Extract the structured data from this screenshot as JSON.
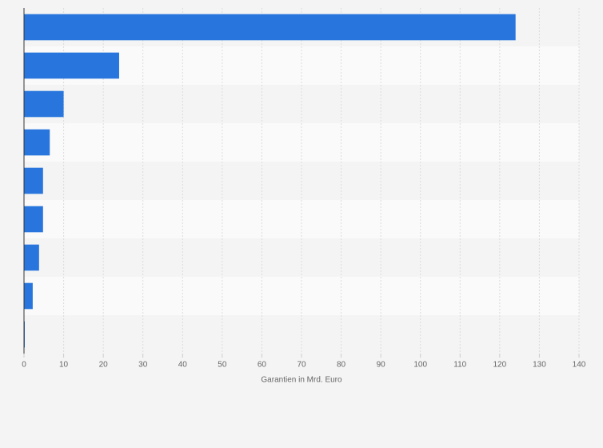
{
  "chart_data": {
    "type": "bar",
    "orientation": "horizontal",
    "x_label": "Garantien in Mrd. Euro",
    "categories": [
      null,
      null,
      null,
      null,
      null,
      null,
      null,
      null,
      null
    ],
    "values": [
      124,
      24,
      10,
      6.5,
      4.8,
      4.8,
      3.8,
      2.2,
      0.2
    ],
    "color": "#2876dd",
    "xlim": [
      0,
      140
    ],
    "xticks": [
      0,
      10,
      20,
      30,
      40,
      50,
      60,
      70,
      80,
      90,
      100,
      110,
      120,
      130,
      140
    ],
    "grid": true
  }
}
